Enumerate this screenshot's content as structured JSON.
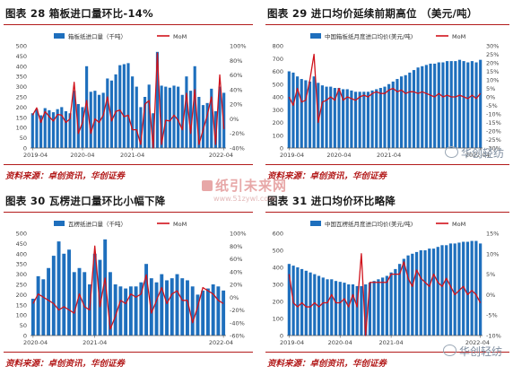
{
  "brand_text": "华创轻纺",
  "watermark": {
    "main": "纸引未来网",
    "sub": "www.51zywl.com"
  },
  "chart_data": [
    {
      "type": "bar",
      "title": "图表 28   箱板进口量环比-14%",
      "source": "资料来源：卓创资讯，华创证券",
      "series": [
        {
          "name": "箱板纸进口量（千吨）",
          "type": "bar",
          "axis": "left",
          "color": "#1e6fbd",
          "values": [
            170,
            190,
            160,
            195,
            185,
            175,
            190,
            200,
            180,
            170,
            280,
            215,
            200,
            400,
            275,
            280,
            260,
            270,
            340,
            330,
            360,
            405,
            410,
            415,
            350,
            300,
            200,
            250,
            310,
            170,
            470,
            305,
            300,
            295,
            305,
            300,
            260,
            350,
            280,
            400,
            250,
            210,
            220,
            290,
            180,
            300,
            270
          ]
        },
        {
          "name": "MoM",
          "type": "line",
          "axis": "right",
          "color": "#d0121b",
          "values": [
            5,
            15,
            -5,
            10,
            3,
            -3,
            6,
            5,
            -5,
            0,
            50,
            -20,
            -5,
            25,
            -20,
            0,
            -5,
            5,
            30,
            -3,
            10,
            12,
            3,
            5,
            -15,
            -15,
            -35,
            20,
            25,
            -40,
            90,
            -35,
            -2,
            -3,
            5,
            -2,
            -15,
            35,
            -20,
            40,
            -35,
            -15,
            5,
            30,
            -35,
            60,
            -14
          ]
        }
      ],
      "x_tick_labels": [
        "2019-04",
        "2020-04",
        "2021-04",
        "2022-04"
      ],
      "x_tick_index": [
        0,
        12,
        24,
        46
      ],
      "ylim_left": [
        0,
        500
      ],
      "ytick_step_left": 50,
      "ylim_right": [
        -40,
        100
      ],
      "ytick_step_right": 20,
      "right_axis_format": "percent",
      "legend_position": "top"
    },
    {
      "type": "bar",
      "title": "图表 29   进口均价延续前期高位 （美元/吨）",
      "source": "资料来源：卓创资讯，华创证券",
      "series": [
        {
          "name": "中国箱板纸月度进口均价(美元/吨)",
          "type": "bar",
          "axis": "left",
          "color": "#1e6fbd",
          "values": [
            600,
            590,
            560,
            540,
            530,
            520,
            560,
            510,
            490,
            480,
            480,
            470,
            470,
            460,
            460,
            450,
            440,
            440,
            440,
            440,
            450,
            460,
            470,
            480,
            500,
            520,
            540,
            560,
            570,
            590,
            610,
            630,
            640,
            650,
            660,
            660,
            670,
            670,
            680,
            680,
            680,
            690,
            680,
            670,
            680,
            670,
            690
          ]
        },
        {
          "name": "MoM",
          "type": "line",
          "axis": "right",
          "color": "#d0121b",
          "values": [
            0,
            -5,
            5,
            -3,
            -2,
            10,
            25,
            -15,
            -3,
            -2,
            0,
            -2,
            5,
            -2,
            0,
            -1,
            -2,
            0,
            1,
            0,
            2,
            3,
            2,
            2,
            4,
            5,
            3,
            4,
            2,
            3,
            3,
            2,
            3,
            2,
            1,
            0,
            2,
            0,
            1,
            0,
            0,
            1,
            0,
            -1,
            1,
            -1,
            2
          ]
        }
      ],
      "x_tick_labels": [
        "2019-04",
        "2020-04",
        "2021-04",
        "2022-04"
      ],
      "x_tick_index": [
        0,
        12,
        24,
        46
      ],
      "ylim_left": [
        0,
        800
      ],
      "ytick_step_left": 100,
      "ylim_right": [
        -30,
        30
      ],
      "ytick_step_right": 5,
      "right_axis_format": "percent",
      "legend_position": "top"
    },
    {
      "type": "bar",
      "title": "图表 30   瓦楞进口量环比小幅下降",
      "source": "资料来源：卓创资讯，华创证券",
      "series": [
        {
          "name": "瓦楞纸进口量（千吨）",
          "type": "bar",
          "axis": "left",
          "color": "#1e6fbd",
          "values": [
            180,
            290,
            275,
            330,
            390,
            460,
            400,
            420,
            310,
            330,
            310,
            250,
            400,
            370,
            470,
            310,
            250,
            240,
            230,
            240,
            240,
            260,
            350,
            280,
            260,
            300,
            270,
            280,
            300,
            280,
            270,
            240,
            200,
            220,
            230,
            250,
            240,
            220
          ]
        },
        {
          "name": "MoM",
          "type": "line",
          "axis": "right",
          "color": "#d0121b",
          "values": [
            -10,
            5,
            0,
            -5,
            -10,
            -20,
            -15,
            -20,
            -25,
            5,
            -15,
            -20,
            80,
            -15,
            30,
            -50,
            -30,
            -5,
            -10,
            5,
            0,
            5,
            35,
            -25,
            -5,
            15,
            -10,
            5,
            10,
            -5,
            -5,
            -40,
            -15,
            15,
            10,
            5,
            -5,
            -10
          ]
        }
      ],
      "x_tick_labels": [
        "2020-04",
        "2021-04",
        "2022-04"
      ],
      "x_tick_index": [
        0,
        12,
        37
      ],
      "ylim_left": [
        0,
        500
      ],
      "ytick_step_left": 50,
      "ylim_right": [
        -60,
        100
      ],
      "ytick_step_right": 20,
      "right_axis_format": "percent",
      "legend_position": "top"
    },
    {
      "type": "bar",
      "title": "图表 31   进口均价环比略降",
      "source": "资料来源：卓创资讯，华创证券",
      "series": [
        {
          "name": "中国瓦楞纸月度进口均价(美元/吨)",
          "type": "bar",
          "axis": "left",
          "color": "#1e6fbd",
          "values": [
            420,
            410,
            400,
            390,
            380,
            370,
            360,
            350,
            340,
            330,
            330,
            320,
            315,
            310,
            300,
            300,
            290,
            290,
            300,
            310,
            320,
            330,
            340,
            350,
            370,
            390,
            420,
            450,
            470,
            480,
            490,
            500,
            500,
            510,
            510,
            520,
            530,
            530,
            540,
            540,
            545,
            550,
            550,
            555,
            555,
            540
          ]
        },
        {
          "name": "MoM",
          "type": "line",
          "axis": "right",
          "color": "#d0121b",
          "values": [
            5,
            -2,
            -3,
            -2,
            -3,
            -3,
            -2,
            -3,
            -2,
            -2,
            0,
            -2,
            -2,
            -1,
            -3,
            0,
            -3,
            10,
            -10,
            3,
            3,
            3,
            3,
            3,
            5,
            5,
            5,
            8,
            4,
            2,
            6,
            4,
            3,
            2,
            5,
            3,
            2,
            4,
            2,
            0,
            1,
            2,
            0,
            1,
            0,
            -2
          ]
        }
      ],
      "x_tick_labels": [
        "2019-04",
        "2020-04",
        "2021-04",
        "2022-04"
      ],
      "x_tick_index": [
        0,
        12,
        24,
        45
      ],
      "ylim_left": [
        0,
        600
      ],
      "ytick_step_left": 100,
      "ylim_right": [
        -10,
        15
      ],
      "ytick_step_right": 5,
      "right_axis_format": "percent",
      "legend_position": "top"
    }
  ]
}
